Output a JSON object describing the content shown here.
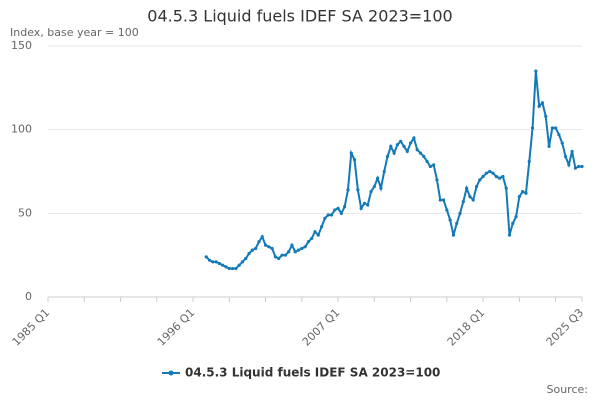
{
  "chart_data": {
    "type": "line",
    "title": "04.5.3 Liquid fuels IDEF SA 2023=100",
    "subtitle": "Index, base year = 100",
    "source": "Source:",
    "categories": [
      "1985 Q1",
      null,
      null,
      null,
      null,
      null,
      null,
      null,
      null,
      null,
      null,
      null,
      null,
      null,
      null,
      null,
      null,
      null,
      null,
      null,
      null,
      null,
      null,
      null,
      null,
      null,
      null,
      null,
      null,
      null,
      null,
      null,
      null,
      null,
      null,
      null,
      null,
      null,
      null,
      null,
      null,
      null,
      null,
      null,
      "1996 Q1",
      null,
      null,
      null,
      null,
      null,
      null,
      null,
      null,
      null,
      null,
      null,
      null,
      null,
      null,
      null,
      null,
      null,
      null,
      null,
      null,
      null,
      null,
      null,
      null,
      null,
      null,
      null,
      null,
      null,
      null,
      null,
      null,
      null,
      null,
      null,
      null,
      null,
      null,
      null,
      null,
      null,
      null,
      null,
      "2007 Q1",
      null,
      null,
      null,
      null,
      null,
      null,
      null,
      null,
      null,
      null,
      null,
      null,
      null,
      null,
      null,
      null,
      null,
      null,
      null,
      null,
      null,
      null,
      null,
      null,
      null,
      null,
      null,
      null,
      null,
      null,
      null,
      null,
      null,
      null,
      null,
      null,
      null,
      null,
      null,
      null,
      null,
      null,
      null,
      "2018 Q1",
      null,
      null,
      null,
      null,
      null,
      null,
      null,
      null,
      null,
      null,
      null,
      null,
      null,
      null,
      null,
      null,
      null,
      null,
      null,
      null,
      null,
      null,
      null,
      null,
      null,
      null,
      null,
      null,
      null,
      "2025 Q3"
    ],
    "series": [
      {
        "name": "04.5.3 Liquid fuels IDEF SA 2023=100",
        "color": "#1379b7",
        "values": [
          null,
          null,
          null,
          null,
          null,
          null,
          null,
          null,
          null,
          null,
          null,
          null,
          null,
          null,
          null,
          null,
          null,
          null,
          null,
          null,
          null,
          null,
          null,
          null,
          null,
          null,
          null,
          null,
          null,
          null,
          null,
          null,
          null,
          null,
          null,
          null,
          null,
          null,
          null,
          null,
          null,
          null,
          null,
          null,
          null,
          null,
          null,
          null,
          24,
          22,
          21,
          21,
          20,
          19,
          18,
          17,
          17,
          17,
          19,
          21,
          23,
          26,
          28,
          29,
          33,
          36,
          31,
          30,
          29,
          24,
          23,
          25,
          25,
          27,
          31,
          27,
          28,
          29,
          30,
          33,
          35,
          39,
          37,
          42,
          47,
          49,
          49,
          52,
          53,
          50,
          54,
          64,
          86,
          82,
          64,
          53,
          56,
          55,
          63,
          66,
          71,
          65,
          75,
          84,
          90,
          86,
          91,
          93,
          90,
          87,
          92,
          95,
          88,
          86,
          84,
          81,
          78,
          79,
          70,
          58,
          58,
          52,
          46,
          37,
          44,
          50,
          57,
          65,
          60,
          58,
          66,
          70,
          72,
          74,
          75,
          74,
          72,
          71,
          72,
          65,
          37,
          44,
          48,
          60,
          63,
          62,
          81,
          101,
          135,
          114,
          116,
          108,
          90,
          101,
          101,
          97,
          92,
          84,
          79,
          87,
          77,
          78,
          78
        ]
      }
    ],
    "ylim": [
      0,
      150
    ],
    "yticks": [
      0,
      50,
      100,
      150
    ],
    "grid": true
  }
}
